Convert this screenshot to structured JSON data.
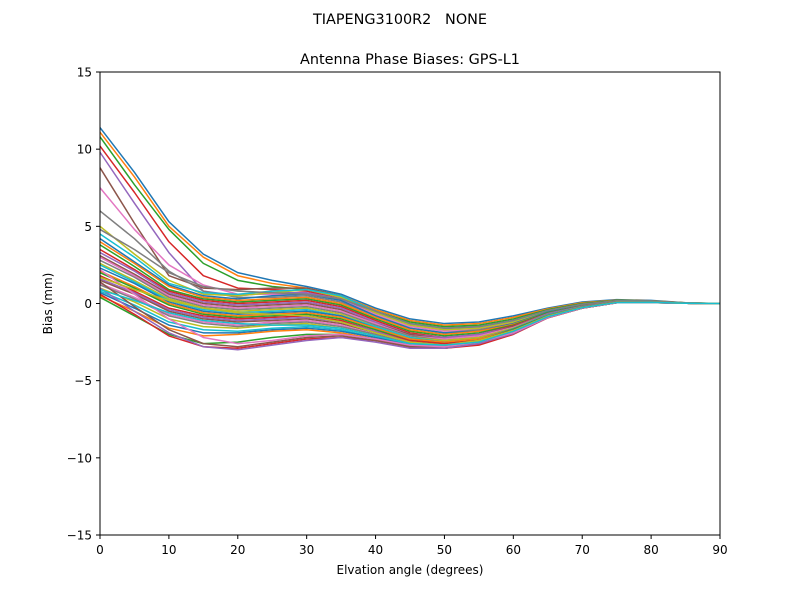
{
  "figure": {
    "suptitle": "TIAPENG3100R2   NONE"
  },
  "chart_data": {
    "type": "line",
    "title": "Antenna Phase Biases: GPS-L1",
    "xlabel": "Elvation angle (degrees)",
    "ylabel": "Bias (mm)",
    "xlim": [
      0,
      90
    ],
    "ylim": [
      -15,
      15
    ],
    "xticks": [
      0,
      10,
      20,
      30,
      40,
      50,
      60,
      70,
      80,
      90
    ],
    "yticks": [
      -15,
      -10,
      -5,
      0,
      5,
      10,
      15
    ],
    "xtick_labels": [
      "0",
      "10",
      "20",
      "30",
      "40",
      "50",
      "60",
      "70",
      "80",
      "90"
    ],
    "ytick_labels": [
      "−15",
      "−10",
      "−5",
      "0",
      "5",
      "10",
      "15"
    ],
    "grid": false,
    "legend": "none",
    "x": [
      0,
      5,
      10,
      15,
      20,
      25,
      30,
      35,
      40,
      45,
      50,
      55,
      60,
      65,
      70,
      75,
      80,
      85,
      90
    ],
    "colors": [
      "#1f77b4",
      "#ff7f0e",
      "#2ca02c",
      "#d62728",
      "#9467bd",
      "#8c564b",
      "#e377c2",
      "#7f7f7f",
      "#bcbd22",
      "#17becf"
    ],
    "series": [
      {
        "values": [
          11.4,
          8.5,
          5.3,
          3.2,
          2.0,
          1.5,
          1.1,
          0.6,
          -0.3,
          -1.0,
          -1.3,
          -1.2,
          -0.8,
          -0.3,
          0.1,
          0.25,
          0.2,
          0.05,
          0.0
        ]
      },
      {
        "values": [
          11.1,
          8.2,
          5.0,
          3.0,
          1.8,
          1.3,
          1.0,
          0.5,
          -0.4,
          -1.1,
          -1.4,
          -1.3,
          -0.9,
          -0.35,
          0.05,
          0.22,
          0.18,
          0.05,
          0.0
        ]
      },
      {
        "values": [
          10.8,
          7.7,
          4.8,
          2.6,
          1.5,
          1.1,
          0.9,
          0.4,
          -0.5,
          -1.2,
          -1.5,
          -1.4,
          -1.0,
          -0.4,
          0.0,
          0.2,
          0.17,
          0.04,
          0.0
        ]
      },
      {
        "values": [
          10.2,
          7.2,
          4.0,
          1.8,
          1.0,
          0.9,
          0.8,
          0.3,
          -0.6,
          -1.3,
          -1.6,
          -1.5,
          -1.1,
          -0.45,
          -0.05,
          0.18,
          0.16,
          0.03,
          0.0
        ]
      },
      {
        "values": [
          9.8,
          6.5,
          3.3,
          0.8,
          0.5,
          0.7,
          0.7,
          0.3,
          -0.6,
          -1.4,
          -1.7,
          -1.6,
          -1.2,
          -0.5,
          -0.1,
          0.16,
          0.15,
          0.03,
          0.0
        ]
      },
      {
        "values": [
          8.8,
          5.2,
          1.8,
          1.0,
          0.9,
          1.0,
          1.0,
          0.5,
          -0.5,
          -1.3,
          -1.6,
          -1.5,
          -1.1,
          -0.45,
          -0.05,
          0.18,
          0.17,
          0.04,
          0.0
        ]
      },
      {
        "values": [
          7.5,
          4.8,
          2.5,
          1.2,
          0.6,
          0.6,
          0.6,
          0.2,
          -0.7,
          -1.5,
          -1.8,
          -1.7,
          -1.2,
          -0.5,
          -0.1,
          0.15,
          0.14,
          0.03,
          0.0
        ]
      },
      {
        "values": [
          6.0,
          4.2,
          2.1,
          0.8,
          0.4,
          0.4,
          0.5,
          0.1,
          -0.8,
          -1.6,
          -1.9,
          -1.7,
          -1.3,
          -0.55,
          -0.12,
          0.14,
          0.13,
          0.02,
          0.0
        ]
      },
      {
        "values": [
          5.0,
          3.2,
          1.5,
          0.6,
          0.5,
          0.7,
          0.9,
          0.4,
          -0.6,
          -1.4,
          -1.7,
          -1.6,
          -1.2,
          -0.5,
          -0.08,
          0.16,
          0.15,
          0.03,
          0.0
        ]
      },
      {
        "values": [
          4.5,
          3.0,
          1.3,
          0.7,
          0.6,
          0.8,
          0.9,
          0.5,
          -0.5,
          -1.3,
          -1.6,
          -1.5,
          -1.1,
          -0.45,
          -0.05,
          0.17,
          0.16,
          0.03,
          0.0
        ]
      },
      {
        "values": [
          4.2,
          2.7,
          1.2,
          0.5,
          0.3,
          0.5,
          0.6,
          0.2,
          -0.8,
          -1.6,
          -1.9,
          -1.8,
          -1.3,
          -0.55,
          -0.12,
          0.14,
          0.13,
          0.02,
          0.0
        ]
      },
      {
        "values": [
          4.0,
          2.6,
          1.1,
          0.4,
          0.2,
          0.3,
          0.4,
          0.0,
          -0.9,
          -1.7,
          -2.0,
          -1.8,
          -1.35,
          -0.6,
          -0.15,
          0.13,
          0.12,
          0.02,
          0.0
        ]
      },
      {
        "values": [
          3.8,
          2.4,
          0.9,
          0.3,
          0.1,
          0.2,
          0.3,
          -0.1,
          -1.0,
          -1.8,
          -2.1,
          -1.9,
          -1.4,
          -0.6,
          -0.15,
          0.12,
          0.12,
          0.02,
          0.0
        ]
      },
      {
        "values": [
          3.5,
          2.2,
          0.8,
          0.2,
          0.0,
          0.1,
          0.2,
          -0.2,
          -1.1,
          -1.9,
          -2.2,
          -2.0,
          -1.45,
          -0.65,
          -0.18,
          0.11,
          0.11,
          0.02,
          0.0
        ]
      },
      {
        "values": [
          3.3,
          2.1,
          0.7,
          0.1,
          -0.1,
          0.0,
          0.1,
          -0.3,
          -1.2,
          -2.0,
          -2.2,
          -2.0,
          -1.5,
          -0.65,
          -0.18,
          0.11,
          0.11,
          0.02,
          0.0
        ]
      },
      {
        "values": [
          3.1,
          1.9,
          0.6,
          0.0,
          -0.2,
          -0.1,
          0.0,
          -0.4,
          -1.3,
          -2.0,
          -2.3,
          -2.1,
          -1.5,
          -0.7,
          -0.2,
          0.1,
          0.1,
          0.02,
          0.0
        ]
      },
      {
        "values": [
          3.0,
          1.8,
          0.5,
          -0.1,
          -0.3,
          -0.2,
          -0.1,
          -0.5,
          -1.3,
          -2.1,
          -2.3,
          -2.1,
          -1.55,
          -0.7,
          -0.2,
          0.1,
          0.1,
          0.02,
          0.0
        ]
      },
      {
        "values": [
          2.8,
          1.7,
          0.4,
          -0.2,
          -0.4,
          -0.3,
          -0.2,
          -0.6,
          -1.4,
          -2.1,
          -2.4,
          -2.2,
          -1.6,
          -0.7,
          -0.2,
          0.1,
          0.1,
          0.02,
          0.0
        ]
      },
      {
        "values": [
          2.6,
          1.5,
          0.3,
          -0.3,
          -0.5,
          -0.4,
          -0.3,
          -0.7,
          -1.5,
          -2.2,
          -2.4,
          -2.2,
          -1.6,
          -0.75,
          -0.22,
          0.09,
          0.1,
          0.02,
          0.0
        ]
      },
      {
        "values": [
          2.5,
          1.4,
          0.2,
          -0.4,
          -0.6,
          -0.5,
          -0.4,
          -0.8,
          -1.5,
          -2.2,
          -2.5,
          -2.3,
          -1.65,
          -0.75,
          -0.22,
          0.09,
          0.09,
          0.02,
          0.0
        ]
      },
      {
        "values": [
          2.3,
          1.3,
          0.1,
          -0.5,
          -0.7,
          -0.6,
          -0.5,
          -0.8,
          -1.6,
          -2.3,
          -2.5,
          -2.3,
          -1.65,
          -0.78,
          -0.23,
          0.08,
          0.09,
          0.02,
          0.0
        ]
      },
      {
        "values": [
          2.1,
          1.1,
          0.0,
          -0.6,
          -0.8,
          -0.7,
          -0.6,
          -0.9,
          -1.6,
          -2.3,
          -2.5,
          -2.3,
          -1.7,
          -0.8,
          -0.24,
          0.08,
          0.09,
          0.02,
          0.0
        ]
      },
      {
        "values": [
          2.0,
          1.0,
          -0.1,
          -0.7,
          -0.9,
          -0.8,
          -0.7,
          -1.0,
          -1.7,
          -2.4,
          -2.6,
          -2.4,
          -1.7,
          -0.8,
          -0.25,
          0.08,
          0.08,
          0.02,
          0.0
        ]
      },
      {
        "values": [
          1.8,
          0.8,
          -0.3,
          -0.8,
          -1.0,
          -0.9,
          -0.8,
          -1.1,
          -1.8,
          -2.4,
          -2.6,
          -2.4,
          -1.75,
          -0.82,
          -0.25,
          0.07,
          0.08,
          0.02,
          0.0
        ]
      },
      {
        "values": [
          1.6,
          0.7,
          -0.4,
          -0.9,
          -1.1,
          -1.0,
          -0.9,
          -1.2,
          -1.8,
          -2.5,
          -2.7,
          -2.4,
          -1.75,
          -0.82,
          -0.26,
          0.07,
          0.08,
          0.02,
          0.0
        ]
      },
      {
        "values": [
          1.5,
          0.6,
          -0.5,
          -1.0,
          -1.2,
          -1.1,
          -1.0,
          -1.3,
          -1.9,
          -2.5,
          -2.7,
          -2.5,
          -1.8,
          -0.85,
          -0.27,
          0.07,
          0.08,
          0.02,
          0.0
        ]
      },
      {
        "values": [
          1.3,
          0.4,
          -0.7,
          -1.2,
          -1.4,
          -1.2,
          -1.1,
          -1.4,
          -2.0,
          -2.6,
          -2.7,
          -2.5,
          -1.8,
          -0.85,
          -0.27,
          0.06,
          0.07,
          0.02,
          0.0
        ]
      },
      {
        "values": [
          1.2,
          0.3,
          -0.8,
          -1.3,
          -1.5,
          -1.3,
          -1.2,
          -1.5,
          -2.0,
          -2.6,
          -2.8,
          -2.5,
          -1.85,
          -0.87,
          -0.28,
          0.06,
          0.07,
          0.02,
          0.0
        ]
      },
      {
        "values": [
          1.0,
          0.1,
          -1.0,
          -1.5,
          -1.6,
          -1.4,
          -1.3,
          -1.6,
          -2.1,
          -2.7,
          -2.8,
          -2.6,
          -1.85,
          -0.88,
          -0.28,
          0.06,
          0.07,
          0.02,
          0.0
        ]
      },
      {
        "values": [
          0.8,
          -0.1,
          -1.2,
          -1.7,
          -1.8,
          -1.6,
          -1.5,
          -1.7,
          -2.2,
          -2.7,
          -2.8,
          -2.6,
          -1.9,
          -0.9,
          -0.29,
          0.05,
          0.07,
          0.02,
          0.0
        ]
      },
      {
        "values": [
          0.7,
          -0.3,
          -1.4,
          -1.9,
          -1.9,
          -1.7,
          -1.6,
          -1.8,
          -2.2,
          -2.7,
          -2.9,
          -2.6,
          -1.9,
          -0.9,
          -0.3,
          0.05,
          0.06,
          0.02,
          0.0
        ]
      },
      {
        "values": [
          0.5,
          -0.5,
          -1.6,
          -2.1,
          -2.0,
          -1.8,
          -1.7,
          -1.9,
          -2.3,
          -2.8,
          -2.9,
          -2.6,
          -1.95,
          -0.92,
          -0.3,
          0.05,
          0.06,
          0.02,
          0.0
        ]
      },
      {
        "values": [
          0.4,
          -0.8,
          -2.0,
          -2.6,
          -2.5,
          -2.2,
          -2.0,
          -2.0,
          -2.3,
          -2.8,
          -2.9,
          -2.6,
          -1.95,
          -0.92,
          -0.3,
          0.05,
          0.06,
          0.02,
          0.0
        ]
      },
      {
        "values": [
          0.6,
          -0.7,
          -2.1,
          -2.8,
          -2.9,
          -2.6,
          -2.3,
          -2.2,
          -2.4,
          -2.8,
          -2.9,
          -2.7,
          -2.0,
          -0.93,
          -0.3,
          0.05,
          0.06,
          0.02,
          0.0
        ]
      },
      {
        "values": [
          1.0,
          -0.5,
          -1.9,
          -2.8,
          -3.0,
          -2.7,
          -2.4,
          -2.2,
          -2.5,
          -2.9,
          -2.9,
          -2.6,
          -1.95,
          -0.92,
          -0.3,
          0.05,
          0.06,
          0.02,
          0.0
        ]
      },
      {
        "values": [
          1.4,
          -0.2,
          -1.7,
          -2.6,
          -2.8,
          -2.5,
          -2.2,
          -2.1,
          -2.4,
          -2.8,
          -2.8,
          -2.5,
          -1.9,
          -0.9,
          -0.3,
          0.05,
          0.06,
          0.02,
          0.0
        ]
      },
      {
        "values": [
          2.2,
          0.6,
          -1.0,
          -2.2,
          -2.6,
          -2.4,
          -2.1,
          -2.0,
          -2.3,
          -2.7,
          -2.8,
          -2.5,
          -1.9,
          -0.9,
          -0.29,
          0.05,
          0.06,
          0.02,
          0.0
        ]
      },
      {
        "values": [
          4.8,
          3.5,
          2.0,
          1.1,
          0.8,
          0.7,
          0.6,
          0.3,
          -0.5,
          -1.3,
          -1.6,
          -1.5,
          -1.1,
          -0.45,
          -0.05,
          0.17,
          0.16,
          0.03,
          0.0
        ]
      },
      {
        "values": [
          1.7,
          0.9,
          0.2,
          -0.3,
          -0.6,
          -0.7,
          -0.8,
          -1.2,
          -1.9,
          -2.5,
          -2.7,
          -2.4,
          -1.75,
          -0.82,
          -0.26,
          0.07,
          0.08,
          0.02,
          0.0
        ]
      },
      {
        "values": [
          0.9,
          0.2,
          -0.6,
          -1.1,
          -1.3,
          -1.4,
          -1.4,
          -1.6,
          -2.1,
          -2.6,
          -2.7,
          -2.5,
          -1.8,
          -0.86,
          -0.27,
          0.06,
          0.07,
          0.02,
          0.0
        ]
      }
    ]
  }
}
